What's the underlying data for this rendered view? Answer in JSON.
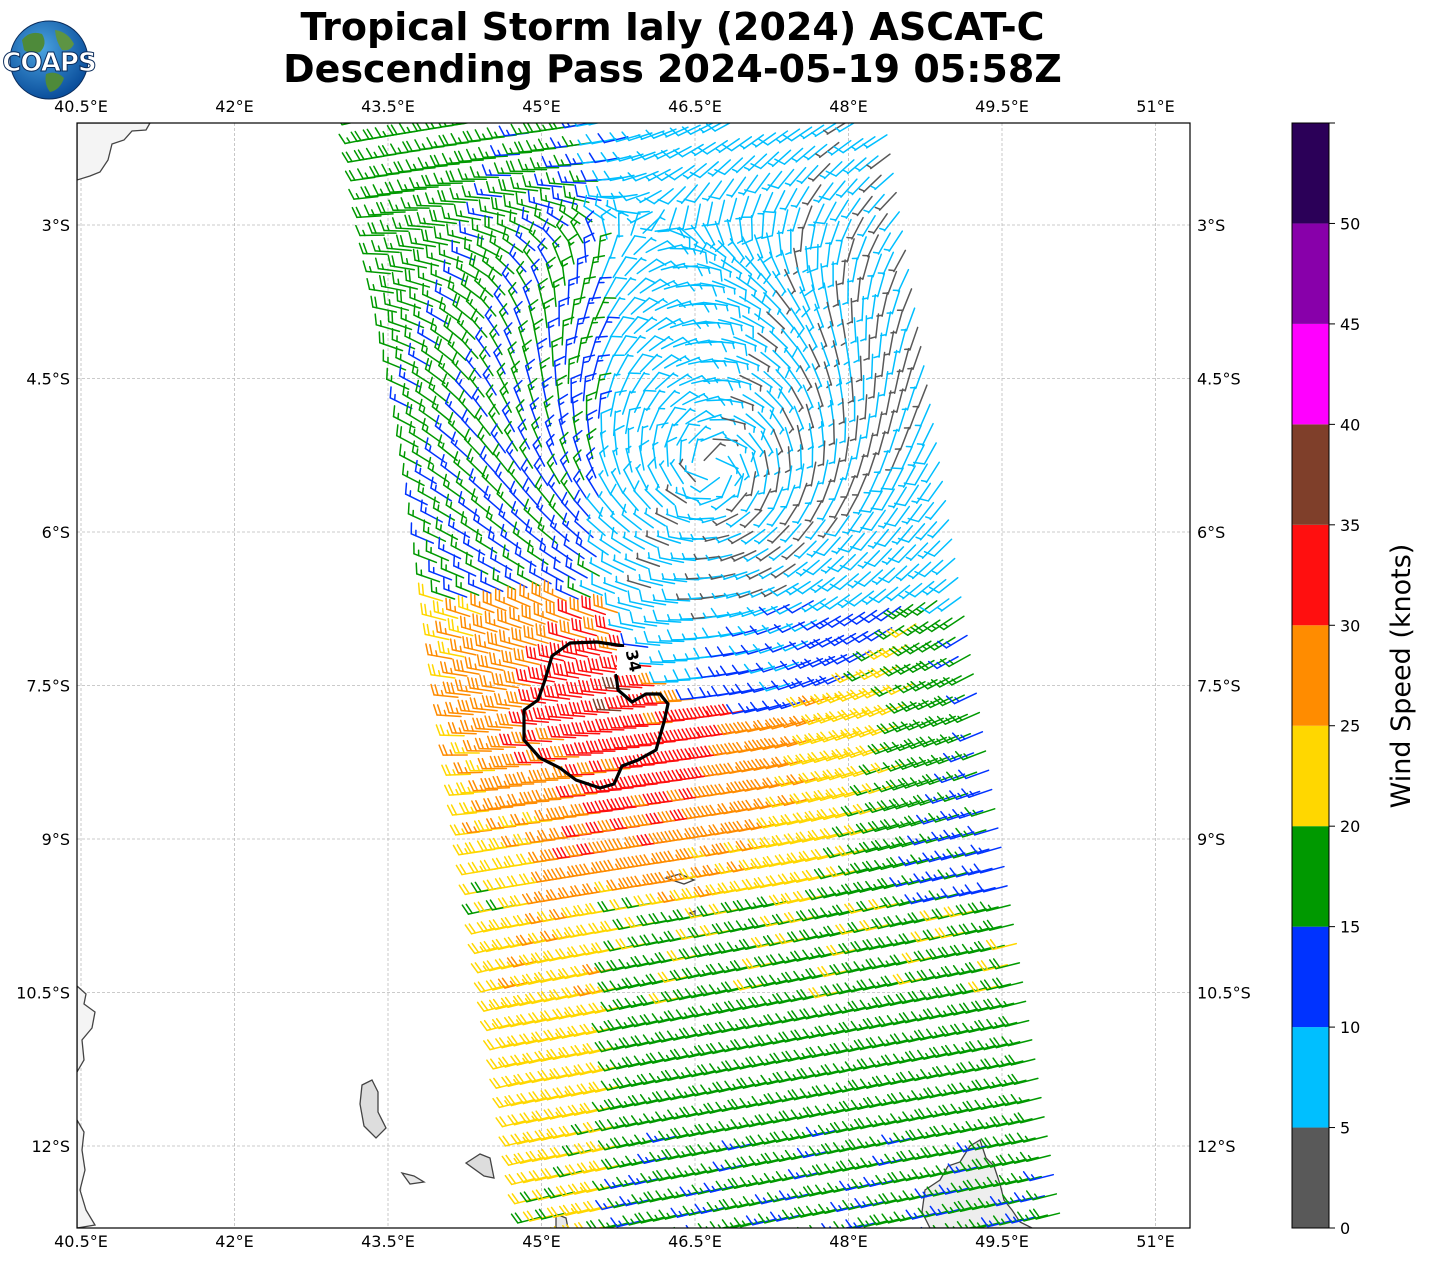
{
  "title": {
    "line1": "Tropical Storm Ialy (2024) ASCAT-C",
    "line2": "Descending Pass 2024-05-19 05:58Z"
  },
  "logo": {
    "text": "COAPS"
  },
  "map": {
    "lon_ticks": [
      "40.5°E",
      "42°E",
      "43.5°E",
      "45°E",
      "46.5°E",
      "48°E",
      "49.5°E",
      "51°E"
    ],
    "lat_ticks": [
      "3°S",
      "4.5°S",
      "6°S",
      "7.5°S",
      "9°S",
      "10.5°S",
      "12°S"
    ],
    "contour_label": "34",
    "colors": {
      "grid": "#bbbbbb",
      "coast": "#444444",
      "contour": "#000000"
    }
  },
  "colorbar": {
    "label": "Wind Speed (knots)",
    "ticks": [
      "0",
      "5",
      "10",
      "15",
      "20",
      "25",
      "30",
      "35",
      "40",
      "45",
      "50"
    ],
    "bins": [
      {
        "from": 0,
        "to": 5,
        "color": "#595959"
      },
      {
        "from": 5,
        "to": 10,
        "color": "#00bfff"
      },
      {
        "from": 10,
        "to": 15,
        "color": "#0033ff"
      },
      {
        "from": 15,
        "to": 20,
        "color": "#009900"
      },
      {
        "from": 20,
        "to": 25,
        "color": "#ffd700"
      },
      {
        "from": 25,
        "to": 30,
        "color": "#ff8c00"
      },
      {
        "from": 30,
        "to": 35,
        "color": "#ff0f0f"
      },
      {
        "from": 35,
        "to": 40,
        "color": "#7f3f2a"
      },
      {
        "from": 40,
        "to": 45,
        "color": "#ff00ff"
      },
      {
        "from": 45,
        "to": 50,
        "color": "#8800aa"
      },
      {
        "from": 50,
        "to": 55,
        "color": "#2b0058"
      }
    ]
  }
}
